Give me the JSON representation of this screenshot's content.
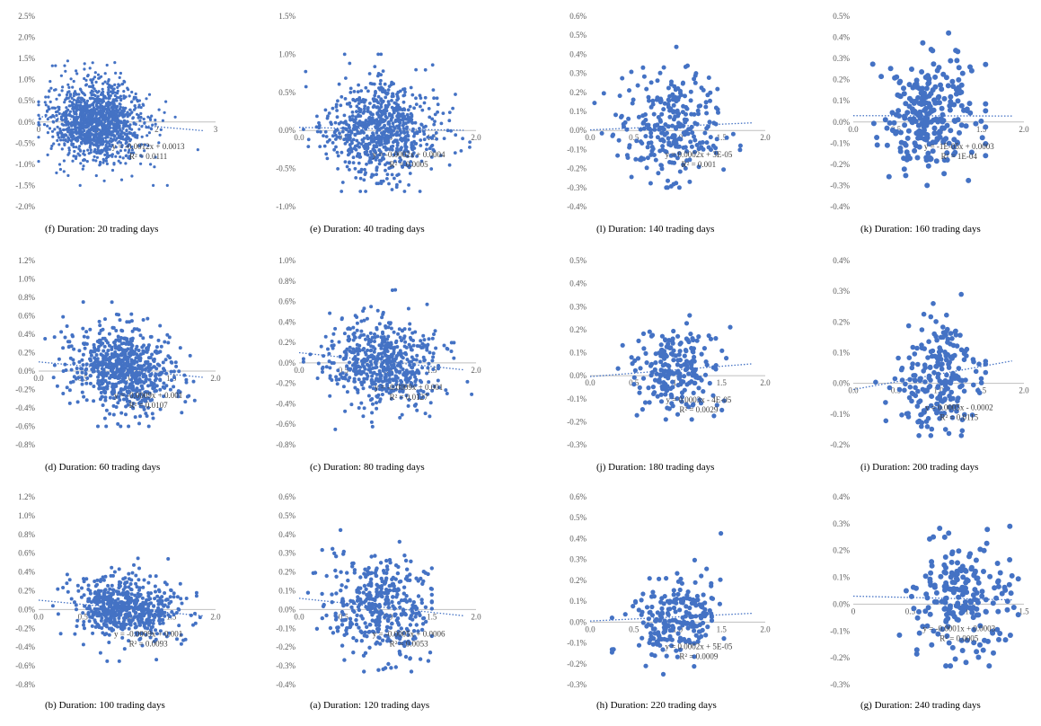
{
  "figure": {
    "point_color": "#4472C4",
    "trend_color": "#4472C4",
    "axis_color": "#bfbfbf",
    "text_color": "#000000"
  },
  "chart_data": [
    {
      "id": "f",
      "type": "scatter",
      "caption": "(f)  Duration: 20 trading days",
      "xlim": [
        0,
        3
      ],
      "xticks": [
        "0",
        "1",
        "2",
        "3"
      ],
      "ylim": [
        -2.0,
        2.5
      ],
      "yticks": [
        "2.5%",
        "2.0%",
        "1.5%",
        "1.0%",
        "0.5%",
        "0.0%",
        "-0.5%",
        "-1.0%",
        "-1.5%",
        "-2.0%"
      ],
      "trendline": {
        "slope": -0.0012,
        "intercept": 0.0013,
        "equation": "y = -0.0012x + 0.0013",
        "r2": "R² = 0.0111"
      },
      "points": {
        "n": 1400,
        "x_mean": 1.0,
        "x_sd": 0.4,
        "y_sd": 0.45,
        "x_min": 0.0,
        "x_max": 2.7,
        "y_min": -1.5,
        "y_max": 2.15,
        "dot_radius": 1.6
      }
    },
    {
      "id": "e",
      "type": "scatter",
      "caption": "(e)  Duration: 40 trading days",
      "xlim": [
        0,
        2
      ],
      "xticks": [
        "0.0",
        "0.5",
        "1.0",
        "1.5",
        "2.0"
      ],
      "ylim": [
        -1.0,
        1.5
      ],
      "yticks": [
        "1.5%",
        "1.0%",
        "0.5%",
        "0.0%",
        "-0.5%",
        "-1.0%"
      ],
      "trendline": {
        "slope": -0.0002,
        "intercept": 0.0004,
        "equation": "y = -0.0002x + 0.0004",
        "r2": "R² = 0.0005"
      },
      "points": {
        "n": 800,
        "x_mean": 0.95,
        "x_sd": 0.3,
        "y_sd": 0.3,
        "x_min": 0.05,
        "x_max": 2.0,
        "y_min": -0.8,
        "y_max": 1.0,
        "dot_radius": 1.9
      }
    },
    {
      "id": "l",
      "type": "scatter",
      "caption": "(l)  Duration: 140 trading days",
      "xlim": [
        0,
        2
      ],
      "xticks": [
        "0.0",
        "0.5",
        "1.0",
        "1.5",
        "2.0"
      ],
      "ylim": [
        -0.4,
        0.6
      ],
      "yticks": [
        "0.6%",
        "0.5%",
        "0.4%",
        "0.3%",
        "0.2%",
        "0.1%",
        "0.0%",
        "-0.1%",
        "-0.2%",
        "-0.3%",
        "-0.4%"
      ],
      "trendline": {
        "slope": 0.0002,
        "intercept": 3e-05,
        "equation": "y = 0.0002x + 3E-05",
        "r2": "R² = 0.001"
      },
      "points": {
        "n": 280,
        "x_mean": 0.95,
        "x_sd": 0.3,
        "y_sd": 0.14,
        "x_min": 0.05,
        "x_max": 1.85,
        "y_min": -0.3,
        "y_max": 0.47,
        "dot_radius": 2.5
      }
    },
    {
      "id": "k",
      "type": "scatter",
      "caption": "(k)  Duration: 160 trading days",
      "xlim": [
        0,
        2
      ],
      "xticks": [
        "0.0",
        "0.5",
        "1.0",
        "1.5",
        "2.0"
      ],
      "ylim": [
        -0.4,
        0.5
      ],
      "yticks": [
        "0.5%",
        "0.4%",
        "0.3%",
        "0.2%",
        "0.1%",
        "0.0%",
        "-0.1%",
        "-0.2%",
        "-0.3%",
        "-0.4%"
      ],
      "trendline": {
        "slope": -1e-05,
        "intercept": 0.0003,
        "equation": "y = -1E-05x + 0.0003",
        "r2": "R² = 1E-04"
      },
      "points": {
        "n": 260,
        "x_mean": 0.9,
        "x_sd": 0.28,
        "y_sd": 0.14,
        "x_min": 0.2,
        "x_max": 1.55,
        "y_min": -0.3,
        "y_max": 0.42,
        "dot_radius": 3.0
      }
    },
    {
      "id": "d",
      "type": "scatter",
      "caption": "(d)  Duration: 60 trading days",
      "xlim": [
        0,
        2
      ],
      "xticks": [
        "0.0",
        "0.5",
        "1.0",
        "1.5",
        "2.0"
      ],
      "ylim": [
        -0.8,
        1.2
      ],
      "yticks": [
        "1.2%",
        "1.0%",
        "0.8%",
        "0.6%",
        "0.4%",
        "0.2%",
        "0.0%",
        "-0.2%",
        "-0.4%",
        "-0.6%",
        "-0.8%"
      ],
      "trendline": {
        "slope": -0.0009,
        "intercept": 0.001,
        "equation": "y = -0.0009x + 0.001",
        "r2": "R² = 0.0107"
      },
      "points": {
        "n": 700,
        "x_mean": 0.95,
        "x_sd": 0.3,
        "y_sd": 0.22,
        "x_min": 0.05,
        "x_max": 2.0,
        "y_min": -0.6,
        "y_max": 1.1,
        "dot_radius": 2.0
      }
    },
    {
      "id": "c",
      "type": "scatter",
      "caption": "(c)  Duration: 80 trading days",
      "xlim": [
        0,
        2
      ],
      "xticks": [
        "0.0",
        "0.5",
        "1.0",
        "1.5",
        "2.0"
      ],
      "ylim": [
        -0.8,
        1.0
      ],
      "yticks": [
        "1.0%",
        "0.8%",
        "0.6%",
        "0.4%",
        "0.2%",
        "0.0%",
        "-0.2%",
        "-0.4%",
        "-0.6%",
        "-0.8%"
      ],
      "trendline": {
        "slope": -0.0009,
        "intercept": 0.001,
        "equation": "y = -0.0009x + 0.001",
        "r2": "R² = 0.0127"
      },
      "points": {
        "n": 600,
        "x_mean": 0.95,
        "x_sd": 0.3,
        "y_sd": 0.2,
        "x_min": 0.05,
        "x_max": 1.95,
        "y_min": -0.7,
        "y_max": 0.9,
        "dot_radius": 2.0
      }
    },
    {
      "id": "j",
      "type": "scatter",
      "caption": "(j)  Duration: 180 trading days",
      "xlim": [
        0,
        2
      ],
      "xticks": [
        "0.0",
        "0.5",
        "1.0",
        "1.5",
        "2.0"
      ],
      "ylim": [
        -0.3,
        0.5
      ],
      "yticks": [
        "0.5%",
        "0.4%",
        "0.3%",
        "0.2%",
        "0.1%",
        "0.0%",
        "-0.1%",
        "-0.2%",
        "-0.3%"
      ],
      "trendline": {
        "slope": 0.0003,
        "intercept": -4e-05,
        "equation": "y = 0.0003x - 4E-05",
        "r2": "R² = 0.0029"
      },
      "points": {
        "n": 220,
        "x_mean": 0.95,
        "x_sd": 0.25,
        "y_sd": 0.09,
        "x_min": 0.25,
        "x_max": 1.65,
        "y_min": -0.19,
        "y_max": 0.38,
        "dot_radius": 2.6
      }
    },
    {
      "id": "i",
      "type": "scatter",
      "caption": "(i)  Duration: 200 trading days",
      "xlim": [
        0,
        2
      ],
      "xticks": [
        "0.0",
        "0.5",
        "1.0",
        "1.5",
        "2.0"
      ],
      "ylim": [
        -0.2,
        0.4
      ],
      "yticks": [
        "0.4%",
        "0.3%",
        "0.2%",
        "0.1%",
        "0.0%",
        "-0.1%",
        "-0.2%"
      ],
      "trendline": {
        "slope": 0.0005,
        "intercept": -0.0002,
        "equation": "y = 0.0005x - 0.0002",
        "r2": "R² = 0.0115"
      },
      "points": {
        "n": 230,
        "x_mean": 1.0,
        "x_sd": 0.25,
        "y_sd": 0.09,
        "x_min": 0.2,
        "x_max": 1.55,
        "y_min": -0.17,
        "y_max": 0.29,
        "dot_radius": 2.8
      }
    },
    {
      "id": "b",
      "type": "scatter",
      "caption": "(b)  Duration: 100 trading days",
      "xlim": [
        0,
        2
      ],
      "xticks": [
        "0.0",
        "0.5",
        "1.0",
        "1.5",
        "2.0"
      ],
      "ylim": [
        -0.8,
        1.2
      ],
      "yticks": [
        "1.2%",
        "1.0%",
        "0.8%",
        "0.6%",
        "0.4%",
        "0.2%",
        "0.0%",
        "-0.2%",
        "-0.4%",
        "-0.6%",
        "-0.8%"
      ],
      "trendline": {
        "slope": -0.0009,
        "intercept": 0.001,
        "equation": "y = -0.0009x + 0.001",
        "r2": "R² = 0.0093"
      },
      "points": {
        "n": 600,
        "x_mean": 1.0,
        "x_sd": 0.28,
        "y_sd": 0.15,
        "x_min": 0.15,
        "x_max": 1.85,
        "y_min": -0.55,
        "y_max": 1.1,
        "dot_radius": 2.0
      }
    },
    {
      "id": "a",
      "type": "scatter",
      "caption": "(a)  Duration: 120 trading days",
      "xlim": [
        0,
        2
      ],
      "xticks": [
        "0.0",
        "0.5",
        "1.0",
        "1.5",
        "2.0"
      ],
      "ylim": [
        -0.4,
        0.6
      ],
      "yticks": [
        "0.6%",
        "0.5%",
        "0.4%",
        "0.3%",
        "0.2%",
        "0.1%",
        "0.0%",
        "-0.1%",
        "-0.2%",
        "-0.3%",
        "-0.4%"
      ],
      "trendline": {
        "slope": -0.0005,
        "intercept": 0.0006,
        "equation": "y = -0.0005x + 0.0006",
        "r2": "R² = 0.0053"
      },
      "points": {
        "n": 420,
        "x_mean": 0.95,
        "x_sd": 0.28,
        "y_sd": 0.13,
        "x_min": 0.1,
        "x_max": 1.5,
        "y_min": -0.33,
        "y_max": 0.55,
        "dot_radius": 2.2
      }
    },
    {
      "id": "h",
      "type": "scatter",
      "caption": "(h)  Duration: 220 trading days",
      "xlim": [
        0,
        2
      ],
      "xticks": [
        "0.0",
        "0.5",
        "1.0",
        "1.5",
        "2.0"
      ],
      "ylim": [
        -0.3,
        0.6
      ],
      "yticks": [
        "0.6%",
        "0.5%",
        "0.4%",
        "0.3%",
        "0.2%",
        "0.1%",
        "0.0%",
        "-0.1%",
        "-0.2%",
        "-0.3%"
      ],
      "trendline": {
        "slope": 0.0002,
        "intercept": 5e-05,
        "equation": "y = 0.0002x + 5E-05",
        "r2": "R² = 0.0009"
      },
      "points": {
        "n": 220,
        "x_mean": 0.95,
        "x_sd": 0.25,
        "y_sd": 0.1,
        "x_min": 0.25,
        "x_max": 1.55,
        "y_min": -0.25,
        "y_max": 0.53,
        "dot_radius": 2.6
      }
    },
    {
      "id": "g",
      "type": "scatter",
      "caption": "(g)  Duration: 240 trading days",
      "xlim": [
        0,
        1.5
      ],
      "xticks": [
        "0",
        "0.5",
        "1",
        "1.5"
      ],
      "ylim": [
        -0.3,
        0.4
      ],
      "yticks": [
        "0.4%",
        "0.3%",
        "0.2%",
        "0.1%",
        "0.0%",
        "-0.1%",
        "-0.2%",
        "-0.3%"
      ],
      "trendline": {
        "slope": -0.0001,
        "intercept": 0.0003,
        "equation": "y = -0.0001x + 0.0003",
        "r2": "R² = 0.0005"
      },
      "points": {
        "n": 210,
        "x_mean": 0.95,
        "x_sd": 0.22,
        "y_sd": 0.11,
        "x_min": 0.2,
        "x_max": 1.45,
        "y_min": -0.23,
        "y_max": 0.29,
        "dot_radius": 3.0
      }
    }
  ]
}
